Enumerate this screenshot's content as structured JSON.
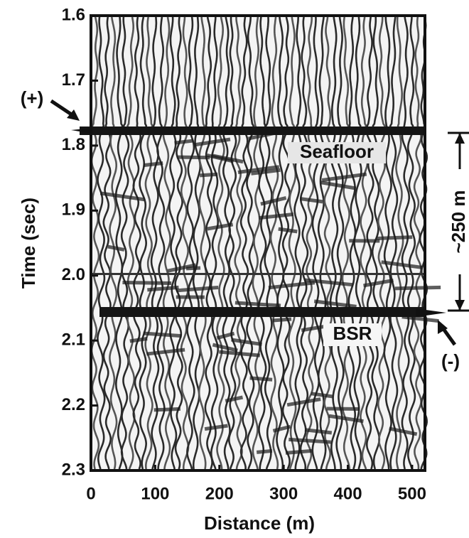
{
  "chart_data": {
    "type": "seismic",
    "x_label": "Distance (m)",
    "y_label": "Time (sec)",
    "xlim": [
      0,
      520
    ],
    "ylim": [
      1.6,
      2.3
    ],
    "xticks": [
      0,
      100,
      200,
      300,
      400,
      500
    ],
    "yticks": [
      1.6,
      1.7,
      1.8,
      1.9,
      {
        "value": 2,
        "label": "2.0"
      },
      2.1,
      2.2,
      2.3
    ],
    "y_inverted": true,
    "annotations": [
      "(+)",
      "Seafloor",
      "BSR",
      "(-)",
      "~250 m"
    ]
  }
}
